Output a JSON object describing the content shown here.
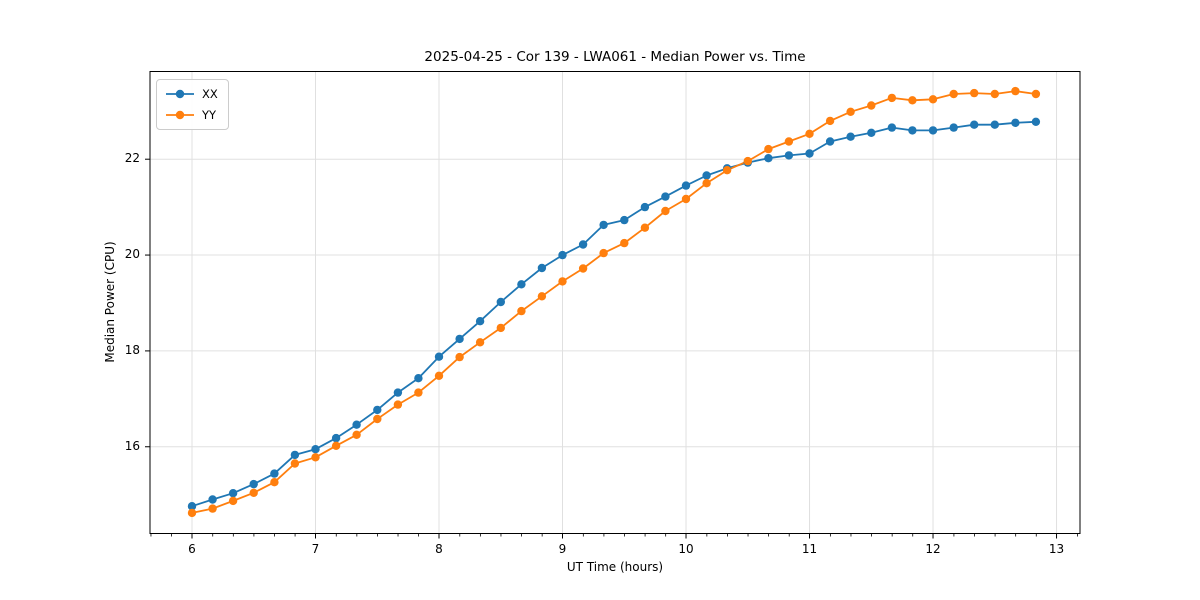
{
  "chart_data": {
    "type": "line",
    "title": "2025-04-25 - Cor 139 - LWA061 - Median Power vs. Time",
    "xlabel": "UT Time (hours)",
    "ylabel": "Median Power (CPU)",
    "xlim": [
      5.66,
      13.19
    ],
    "ylim": [
      14.19,
      23.83
    ],
    "x_ticks": [
      6,
      7,
      8,
      9,
      10,
      11,
      12,
      13
    ],
    "y_ticks": [
      16,
      18,
      20,
      22
    ],
    "x_minor_tick_step": 0.1667,
    "grid": true,
    "grid_color": "#e0e0e0",
    "frame_color": "#000000",
    "legend_position": "upper-left",
    "x": [
      6.0,
      6.167,
      6.333,
      6.5,
      6.667,
      6.833,
      7.0,
      7.167,
      7.333,
      7.5,
      7.667,
      7.833,
      8.0,
      8.167,
      8.333,
      8.5,
      8.667,
      8.833,
      9.0,
      9.167,
      9.333,
      9.5,
      9.667,
      9.833,
      10.0,
      10.167,
      10.333,
      10.5,
      10.667,
      10.833,
      11.0,
      11.167,
      11.333,
      11.5,
      11.667,
      11.833,
      12.0,
      12.167,
      12.333,
      12.5,
      12.667,
      12.833
    ],
    "series": [
      {
        "name": "XX",
        "color": "#1f77b4",
        "values": [
          14.76,
          14.9,
          15.03,
          15.22,
          15.44,
          15.83,
          15.95,
          16.18,
          16.46,
          16.77,
          17.13,
          17.43,
          17.88,
          18.25,
          18.62,
          19.02,
          19.39,
          19.73,
          20.0,
          20.22,
          20.63,
          20.73,
          21.0,
          21.22,
          21.45,
          21.66,
          21.81,
          21.93,
          22.02,
          22.08,
          22.12,
          22.37,
          22.47,
          22.55,
          22.66,
          22.6,
          22.6,
          22.66,
          22.72,
          22.72,
          22.76,
          22.78
        ]
      },
      {
        "name": "YY",
        "color": "#ff7f0e",
        "values": [
          14.62,
          14.71,
          14.87,
          15.04,
          15.26,
          15.65,
          15.78,
          16.02,
          16.25,
          16.58,
          16.88,
          17.13,
          17.48,
          17.87,
          18.18,
          18.48,
          18.83,
          19.14,
          19.45,
          19.72,
          20.04,
          20.25,
          20.57,
          20.92,
          21.17,
          21.5,
          21.77,
          21.96,
          22.21,
          22.37,
          22.53,
          22.8,
          22.99,
          23.12,
          23.28,
          23.23,
          23.25,
          23.36,
          23.38,
          23.36,
          23.42,
          23.36
        ]
      }
    ]
  }
}
